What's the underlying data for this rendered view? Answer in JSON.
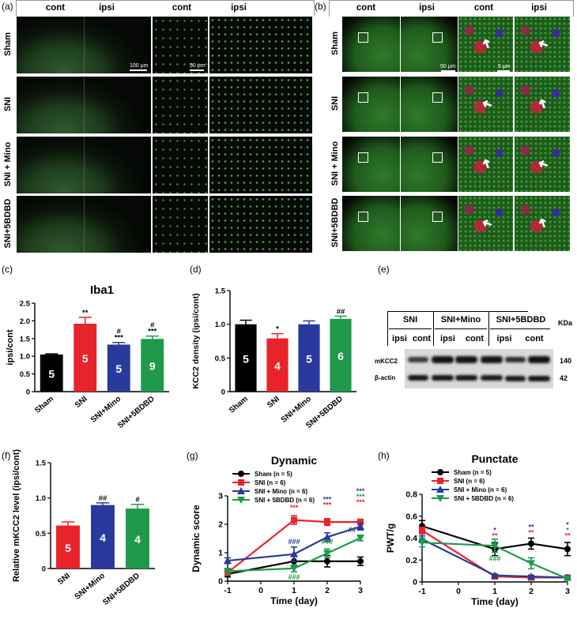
{
  "panels": {
    "a": {
      "label": "(a)",
      "headers": [
        "cont",
        "ipsi",
        "cont",
        "ipsi"
      ],
      "rows": [
        "Sham",
        "SNI",
        "SNI + Mino",
        "SNI+5BDBD"
      ],
      "scale_left": "100 μm",
      "scale_right": "50 μm"
    },
    "b": {
      "label": "(b)",
      "headers": [
        "cont",
        "ipsi",
        "cont",
        "ipsi"
      ],
      "rows": [
        "Sham",
        "SNI",
        "SNI + Mino",
        "SNI+5BDBD"
      ],
      "scale_left": "50 μm",
      "scale_right": "5 μm"
    },
    "c": {
      "label": "(c)"
    },
    "d": {
      "label": "(d)"
    },
    "e": {
      "label": "(e)",
      "groups": [
        "SNI",
        "SNI+Mino",
        "SNI+5BDBD"
      ],
      "lanes": [
        "ipsi",
        "cont",
        "ipsi",
        "cont",
        "ipsi",
        "cont"
      ],
      "kda_header": "KDa",
      "bands": [
        {
          "name": "mKCC2",
          "kda": "140"
        },
        {
          "name": "β-actin",
          "kda": "42"
        }
      ]
    },
    "f": {
      "label": "(f)"
    },
    "g": {
      "label": "(g)"
    },
    "h": {
      "label": "(h)"
    }
  },
  "chart_data": [
    {
      "id": "c",
      "type": "bar",
      "title": "Iba1",
      "xlabel": "",
      "ylabel": "ipsi/cont",
      "ylim": [
        0,
        2.5
      ],
      "yticks": [
        "0",
        "0.5",
        "1.0",
        "1.5",
        "2.0",
        "2.5"
      ],
      "categories": [
        "Sham",
        "SNI",
        "SNI+Mino",
        "SNI+5BDBD"
      ],
      "values": [
        1.05,
        1.92,
        1.33,
        1.49
      ],
      "errors": [
        0.02,
        0.18,
        0.06,
        0.08
      ],
      "n_labels": [
        "5",
        "5",
        "5",
        "9"
      ],
      "annotations": [
        [
          "",
          ""
        ],
        [
          "**",
          ""
        ],
        [
          "#",
          "***"
        ],
        [
          "#",
          "***"
        ]
      ],
      "colors": [
        "#000000",
        "#e8232a",
        "#2a3a9c",
        "#1f9a4b"
      ]
    },
    {
      "id": "d",
      "type": "bar",
      "title": "",
      "xlabel": "",
      "ylabel": "KCC2 density (ipsi/cont)",
      "ylim": [
        0,
        1.5
      ],
      "yticks": [
        "0",
        "0.5",
        "1.0",
        "1.5"
      ],
      "categories": [
        "Sham",
        "SNI",
        "SNI+Mino",
        "SNI+5BDBD"
      ],
      "values": [
        1.0,
        0.79,
        1.0,
        1.08
      ],
      "errors": [
        0.06,
        0.07,
        0.05,
        0.04
      ],
      "n_labels": [
        "5",
        "4",
        "5",
        "6"
      ],
      "annotations": [
        [
          ""
        ],
        [
          "*"
        ],
        [
          ""
        ],
        [
          "##"
        ]
      ],
      "colors": [
        "#000000",
        "#e8232a",
        "#2a3a9c",
        "#1f9a4b"
      ]
    },
    {
      "id": "f",
      "type": "bar",
      "title": "",
      "xlabel": "",
      "ylabel": "Relative mKCC2 level (ipsi/cont)",
      "ylim": [
        0,
        1.5
      ],
      "yticks": [
        "0",
        "0.5",
        "1.0",
        "1.5"
      ],
      "categories": [
        "SNI",
        "SNI+Mino",
        "SNI+5BDBD"
      ],
      "values": [
        0.61,
        0.9,
        0.85
      ],
      "errors": [
        0.05,
        0.03,
        0.06
      ],
      "n_labels": [
        "5",
        "4",
        "4"
      ],
      "annotations": [
        [
          ""
        ],
        [
          "##"
        ],
        [
          "#"
        ]
      ],
      "colors": [
        "#e8232a",
        "#2a3a9c",
        "#1f9a4b"
      ]
    },
    {
      "id": "g",
      "type": "line",
      "title": "Dynamic",
      "xlabel": "Time (day)",
      "ylabel": "Dynamic score",
      "xlim": [
        -1,
        3
      ],
      "ylim": [
        0,
        3
      ],
      "xticks": [
        "-1",
        "0",
        "1",
        "2",
        "3"
      ],
      "yticks": [
        "0",
        "1",
        "2",
        "3"
      ],
      "legend_position": "top-left",
      "x": [
        -1,
        1,
        2,
        3
      ],
      "series": [
        {
          "name": "Sham (n = 5)",
          "color": "#000000",
          "marker": "circle",
          "values": [
            0.25,
            0.7,
            0.7,
            0.7
          ],
          "errors": [
            0.1,
            0.2,
            0.2,
            0.15
          ]
        },
        {
          "name": "SNI (n = 6)",
          "color": "#e8232a",
          "marker": "square",
          "values": [
            0.3,
            2.15,
            2.08,
            2.08
          ],
          "errors": [
            0.1,
            0.15,
            0.12,
            0.1
          ]
        },
        {
          "name": "SNI + Mino (n = 6)",
          "color": "#2a3a9c",
          "marker": "triangle-up",
          "values": [
            0.72,
            0.95,
            1.55,
            1.92
          ],
          "errors": [
            0.1,
            0.25,
            0.15,
            0.12
          ]
        },
        {
          "name": "SNI + 5BDBD (n = 6)",
          "color": "#1f9a4b",
          "marker": "triangle-down",
          "values": [
            0.35,
            0.45,
            0.98,
            1.52
          ],
          "errors": [
            0.1,
            0.12,
            0.15,
            0.1
          ]
        }
      ],
      "annotations": [
        {
          "x": 1,
          "y": 2.5,
          "lines": [
            {
              "text": "***",
              "color": "#e8232a"
            }
          ]
        },
        {
          "x": 2,
          "y": 2.6,
          "lines": [
            {
              "text": "***",
              "color": "#2a3a9c"
            },
            {
              "text": "***",
              "color": "#e8232a"
            }
          ]
        },
        {
          "x": 3,
          "y": 2.7,
          "lines": [
            {
              "text": "***",
              "color": "#2a3a9c"
            },
            {
              "text": "***",
              "color": "#1f9a4b"
            },
            {
              "text": "***",
              "color": "#e8232a"
            }
          ]
        },
        {
          "x": 1,
          "y": 1.3,
          "lines": [
            {
              "text": "###",
              "color": "#2a3a9c"
            }
          ]
        },
        {
          "x": 1,
          "y": 0.05,
          "lines": [
            {
              "text": "###",
              "color": "#1f9a4b"
            }
          ]
        },
        {
          "x": 2,
          "y": 1.3,
          "lines": [
            {
              "text": "###",
              "color": "#1f9a4b"
            }
          ]
        },
        {
          "x": 2.75,
          "y": 1.72,
          "lines": [
            {
              "text": "##",
              "color": "#2a3a9c"
            }
          ]
        }
      ]
    },
    {
      "id": "h",
      "type": "line",
      "title": "Punctate",
      "xlabel": "Time (day)",
      "ylabel": "PWT/g",
      "xlim": [
        -1,
        3
      ],
      "ylim": [
        0,
        0.8
      ],
      "xticks": [
        "-1",
        "0",
        "1",
        "2",
        "3"
      ],
      "yticks": [
        "0",
        "0.2",
        "0.4",
        "0.6",
        "0.8"
      ],
      "legend_position": "top-left",
      "x": [
        -1,
        1,
        2,
        3
      ],
      "series": [
        {
          "name": "Sham (n = 5)",
          "color": "#000000",
          "marker": "circle",
          "values": [
            0.51,
            0.3,
            0.35,
            0.3
          ],
          "errors": [
            0.05,
            0.06,
            0.05,
            0.06
          ]
        },
        {
          "name": "SNI (n = 6)",
          "color": "#e8232a",
          "marker": "square",
          "values": [
            0.47,
            0.05,
            0.04,
            0.04
          ],
          "errors": [
            0.03,
            0.01,
            0.01,
            0.01
          ]
        },
        {
          "name": "SNI + Mino (n = 6)",
          "color": "#2a3a9c",
          "marker": "triangle-up",
          "values": [
            0.39,
            0.06,
            0.05,
            0.04
          ],
          "errors": [
            0.03,
            0.01,
            0.01,
            0.01
          ]
        },
        {
          "name": "SNI + 5BDBD (n = 6)",
          "color": "#1f9a4b",
          "marker": "triangle-down",
          "values": [
            0.36,
            0.33,
            0.17,
            0.03
          ],
          "errors": [
            0.04,
            0.06,
            0.05,
            0.01
          ]
        }
      ],
      "annotations": [
        {
          "x": 1,
          "y": 0.4,
          "lines": [
            {
              "text": "*",
              "color": "#2a3a9c"
            },
            {
              "text": "**",
              "color": "#e8232a"
            }
          ]
        },
        {
          "x": 2,
          "y": 0.43,
          "lines": [
            {
              "text": "**",
              "color": "#2a3a9c"
            },
            {
              "text": "**",
              "color": "#e8232a"
            }
          ]
        },
        {
          "x": 3,
          "y": 0.4,
          "lines": [
            {
              "text": "*",
              "color": "#2a3a9c"
            },
            {
              "text": "*",
              "color": "#1f9a4b"
            },
            {
              "text": "**",
              "color": "#e8232a"
            }
          ]
        },
        {
          "x": 1,
          "y": 0.19,
          "lines": [
            {
              "text": "###",
              "color": "#1f9a4b"
            }
          ]
        }
      ]
    }
  ]
}
